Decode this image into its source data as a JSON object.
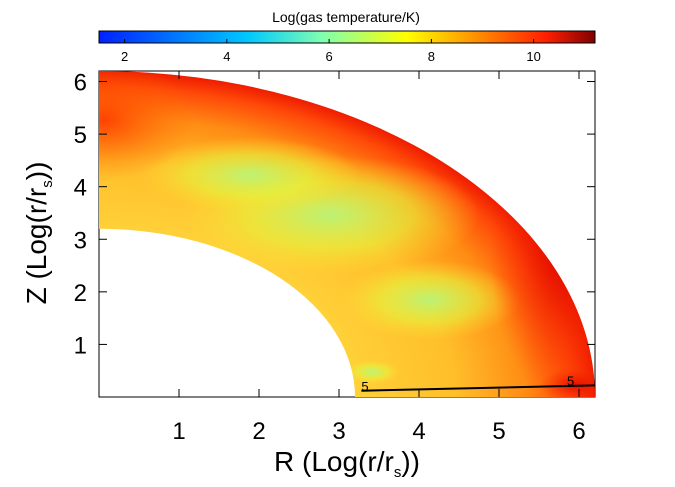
{
  "colorbar": {
    "title": "Log(gas temperature/K)",
    "range": [
      1.5,
      11.2
    ],
    "ticks": [
      "2",
      "4",
      "6",
      "8",
      "10"
    ],
    "tick_values": [
      2,
      4,
      6,
      8,
      10
    ],
    "colors": [
      "#0020ff",
      "#00c8ff",
      "#80ffb0",
      "#ffff00",
      "#ff9000",
      "#ff2000",
      "#800000"
    ]
  },
  "axes": {
    "xlabel_pre": "R (Log(r/r",
    "xlabel_sub": "s",
    "xlabel_post": "))",
    "ylabel_pre": "Z (Log(r/r",
    "ylabel_sub": "s",
    "ylabel_post": "))"
  },
  "contour_labels": [
    "5",
    "5"
  ],
  "chart_data": {
    "type": "heatmap",
    "title": "",
    "xlabel": "R (Log(r/r_s))",
    "ylabel": "Z (Log(r/r_s))",
    "colorbar_label": "Log(gas temperature/K)",
    "xlim": [
      0,
      6.2
    ],
    "ylim": [
      0,
      6.2
    ],
    "x_ticks": [
      1,
      2,
      3,
      4,
      5,
      6
    ],
    "y_ticks": [
      1,
      2,
      3,
      4,
      5,
      6
    ],
    "domain": "annular quarter region between inner radius 3.2 and outer radius 6.2",
    "approx_temperature_structure": [
      {
        "region": "outer edge, high latitude",
        "log_T": 10.5
      },
      {
        "region": "outer edge, near disk plane",
        "log_T": 10.8
      },
      {
        "region": "mid radii, mid latitudes",
        "log_T": 7.0
      },
      {
        "region": "inner edge, near polar axis",
        "log_T": 9.5
      },
      {
        "region": "near inner disk plane",
        "log_T": 7.5
      }
    ],
    "contour_level": 5
  }
}
